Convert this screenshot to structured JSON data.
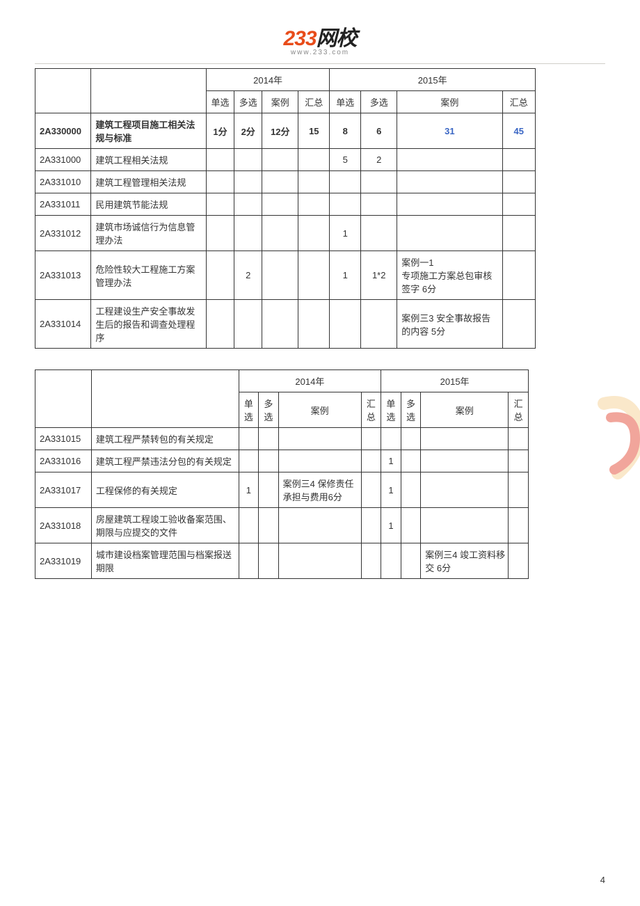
{
  "logo": {
    "brand233": "233",
    "brandCn": "网校",
    "url": "www.233.com"
  },
  "pageNumber": "4",
  "table1": {
    "yearHeaders": {
      "y2014": "2014年",
      "y2015": "2015年"
    },
    "colHeaders": {
      "single": "单选",
      "multi": "多选",
      "case": "案例",
      "total": "汇总"
    },
    "columns_width": {
      "code": 68,
      "title": 140,
      "s14": 34,
      "m14": 34,
      "c14": 44,
      "t14": 38,
      "s15": 38,
      "m15": 44,
      "c15": 128,
      "t15": 40
    },
    "rows": [
      {
        "code": "2A330000",
        "title": "建筑工程项目施工相关法规与标准",
        "s14": "1分",
        "m14": "2分",
        "c14": "12分",
        "t14": "15",
        "s15": "8",
        "m15": "6",
        "c15": "31",
        "t15": "45",
        "bold": true,
        "blue15": true
      },
      {
        "code": "2A331000",
        "title": "建筑工程相关法规",
        "s14": "",
        "m14": "",
        "c14": "",
        "t14": "",
        "s15": "5",
        "m15": "2",
        "c15": "",
        "t15": ""
      },
      {
        "code": "2A331010",
        "title": "建筑工程管理相关法规",
        "s14": "",
        "m14": "",
        "c14": "",
        "t14": "",
        "s15": "",
        "m15": "",
        "c15": "",
        "t15": ""
      },
      {
        "code": "2A331011",
        "title": "民用建筑节能法规",
        "s14": "",
        "m14": "",
        "c14": "",
        "t14": "",
        "s15": "",
        "m15": "",
        "c15": "",
        "t15": ""
      },
      {
        "code": "2A331012",
        "title": "建筑市场诚信行为信息管理办法",
        "s14": "",
        "m14": "",
        "c14": "",
        "t14": "",
        "s15": "1",
        "m15": "",
        "c15": "",
        "t15": ""
      },
      {
        "code": "2A331013",
        "title": "危险性较大工程施工方案管理办法",
        "s14": "",
        "m14": "2",
        "c14": "",
        "t14": "",
        "s15": "1",
        "m15": "1*2",
        "c15": "案例一1\n专项施工方案总包审核签字   6分",
        "t15": ""
      },
      {
        "code": "2A331014",
        "title": "工程建设生产安全事故发生后的报告和调查处理程序",
        "s14": "",
        "m14": "",
        "c14": "",
        "t14": "",
        "s15": "",
        "m15": "",
        "c15": "案例三3 安全事故报告的内容   5分",
        "t15": ""
      }
    ]
  },
  "table2": {
    "yearHeaders": {
      "y2014": "2014年",
      "y2015": "2015年"
    },
    "colHeaders": {
      "single": "单选",
      "multi": "多选",
      "case": "案例",
      "total": "汇总"
    },
    "columns_width": {
      "code": 68,
      "title": 178,
      "s14": 24,
      "m14": 24,
      "c14": 100,
      "t14": 24,
      "s15": 24,
      "m15": 24,
      "c15": 106,
      "t15": 24
    },
    "rows": [
      {
        "code": "2A331015",
        "title": "建筑工程严禁转包的有关规定",
        "s14": "",
        "m14": "",
        "c14": "",
        "t14": "",
        "s15": "",
        "m15": "",
        "c15": "",
        "t15": ""
      },
      {
        "code": "2A331016",
        "title": "建筑工程严禁违法分包的有关规定",
        "s14": "",
        "m14": "",
        "c14": "",
        "t14": "",
        "s15": "1",
        "m15": "",
        "c15": "",
        "t15": ""
      },
      {
        "code": "2A331017",
        "title": "工程保修的有关规定",
        "s14": "1",
        "m14": "",
        "c14": "案例三4 保修责任承担与费用6分",
        "t14": "",
        "s15": "1",
        "m15": "",
        "c15": "",
        "t15": ""
      },
      {
        "code": "2A331018",
        "title": "房屋建筑工程竣工验收备案范围、期限与应提交的文件",
        "s14": "",
        "m14": "",
        "c14": "",
        "t14": "",
        "s15": "1",
        "m15": "",
        "c15": "",
        "t15": ""
      },
      {
        "code": "2A331019",
        "title": "城市建设档案管理范围与档案报送期限",
        "s14": "",
        "m14": "",
        "c14": "",
        "t14": "",
        "s15": "",
        "m15": "",
        "c15": "案例三4 竣工资料移交 6分",
        "t15": ""
      }
    ]
  },
  "watermark_colors": {
    "stroke1": "#f7d9a8",
    "stroke2": "#e86b5a"
  }
}
